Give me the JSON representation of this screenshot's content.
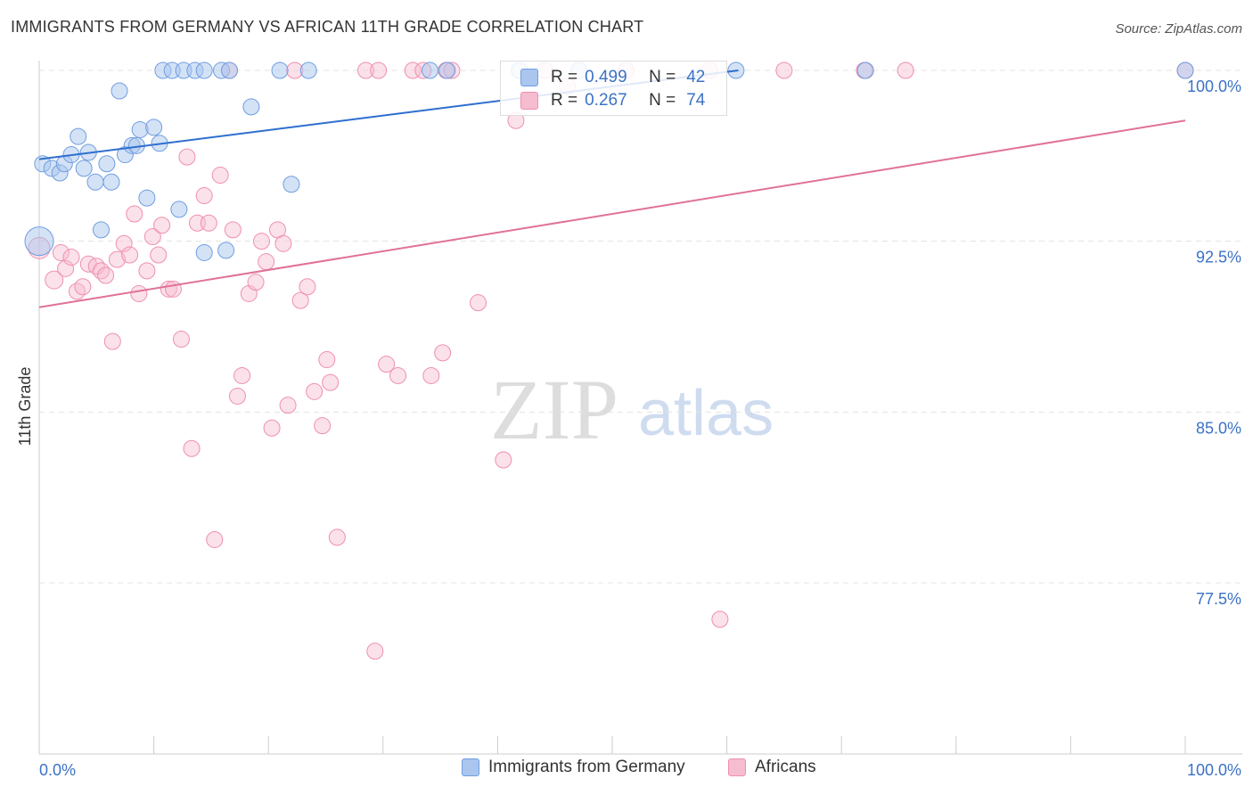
{
  "title": "IMMIGRANTS FROM GERMANY VS AFRICAN 11TH GRADE CORRELATION CHART",
  "source": "Source: ZipAtlas.com",
  "watermark": {
    "zip": "ZIP",
    "atlas": "atlas"
  },
  "stats": {
    "r_label": "R =",
    "n_label": "N =",
    "rows": [
      {
        "r": "0.499",
        "n": "42"
      },
      {
        "r": "0.267",
        "n": "74"
      }
    ]
  },
  "chart_data": {
    "type": "scatter",
    "title": "IMMIGRANTS FROM GERMANY VS AFRICAN 11TH GRADE CORRELATION CHART",
    "xlabel": "",
    "ylabel": "11th Grade",
    "xlim": [
      0,
      100
    ],
    "ylim": [
      70.0,
      101.0
    ],
    "x_tick_labels": [
      "0.0%",
      "100.0%"
    ],
    "y_ticks": [
      77.5,
      85.0,
      92.5,
      100.0
    ],
    "y_tick_labels": [
      "77.5%",
      "85.0%",
      "92.5%",
      "100.0%"
    ],
    "legend_position": "bottom",
    "colors": {
      "germany_fill": "#aac6ee",
      "germany_stroke": "#6f9ee0",
      "germany_line": "#2e6fcf",
      "africa_fill": "#f6bcd0",
      "africa_stroke": "#ef8fb0",
      "africa_line": "#e0719a",
      "axis_label": "#3b72c6"
    },
    "series": [
      {
        "name": "Immigrants from Germany",
        "trend": {
          "x": [
            0,
            61
          ],
          "y": [
            96.1,
            100.0
          ]
        },
        "points": [
          [
            0,
            92.5,
            16
          ],
          [
            0.3,
            95.9,
            9
          ],
          [
            1.1,
            95.7,
            9
          ],
          [
            1.8,
            95.5,
            9
          ],
          [
            2.2,
            95.9,
            9
          ],
          [
            2.8,
            96.3,
            9
          ],
          [
            3.4,
            97.1,
            9
          ],
          [
            3.9,
            95.7,
            9
          ],
          [
            4.3,
            96.4,
            9
          ],
          [
            4.9,
            95.1,
            9
          ],
          [
            5.4,
            93.0,
            9
          ],
          [
            5.9,
            95.9,
            9
          ],
          [
            6.3,
            95.1,
            9
          ],
          [
            7.0,
            99.1,
            9
          ],
          [
            7.5,
            96.3,
            9
          ],
          [
            8.1,
            96.7,
            9
          ],
          [
            8.5,
            96.7,
            9
          ],
          [
            8.8,
            97.4,
            9
          ],
          [
            9.4,
            94.4,
            9
          ],
          [
            10.0,
            97.5,
            9
          ],
          [
            10.5,
            96.8,
            9
          ],
          [
            10.8,
            100.0,
            9
          ],
          [
            11.6,
            100.0,
            9
          ],
          [
            12.2,
            93.9,
            9
          ],
          [
            12.6,
            100.0,
            9
          ],
          [
            13.6,
            100.0,
            9
          ],
          [
            14.4,
            100.0,
            9
          ],
          [
            14.4,
            92.0,
            9
          ],
          [
            15.9,
            100.0,
            9
          ],
          [
            16.6,
            100.0,
            9
          ],
          [
            16.3,
            92.1,
            9
          ],
          [
            18.5,
            98.4,
            9
          ],
          [
            21.0,
            100.0,
            9
          ],
          [
            22.0,
            95.0,
            9
          ],
          [
            23.5,
            100.0,
            9
          ],
          [
            34.1,
            100.0,
            9
          ],
          [
            35.6,
            100.0,
            9
          ],
          [
            41.9,
            100.0,
            9
          ],
          [
            47.1,
            100.0,
            9
          ],
          [
            60.8,
            100.0,
            9
          ],
          [
            72.1,
            100.0,
            9
          ],
          [
            100.0,
            100.0,
            9
          ]
        ]
      },
      {
        "name": "Africans",
        "trend": {
          "x": [
            0,
            100
          ],
          "y": [
            89.6,
            97.8
          ]
        },
        "points": [
          [
            0,
            92.2,
            12
          ],
          [
            1.3,
            90.8,
            10
          ],
          [
            1.9,
            92.0,
            9
          ],
          [
            2.3,
            91.3,
            9
          ],
          [
            2.8,
            91.8,
            9
          ],
          [
            3.3,
            90.3,
            9
          ],
          [
            3.8,
            90.5,
            9
          ],
          [
            4.3,
            91.5,
            9
          ],
          [
            5.0,
            91.4,
            9
          ],
          [
            5.4,
            91.2,
            9
          ],
          [
            5.8,
            91.0,
            9
          ],
          [
            6.4,
            88.1,
            9
          ],
          [
            6.8,
            91.7,
            9
          ],
          [
            7.4,
            92.4,
            9
          ],
          [
            7.9,
            91.9,
            9
          ],
          [
            8.3,
            93.7,
            9
          ],
          [
            8.7,
            90.2,
            9
          ],
          [
            9.4,
            91.2,
            9
          ],
          [
            9.9,
            92.7,
            9
          ],
          [
            10.4,
            91.9,
            9
          ],
          [
            10.7,
            93.2,
            9
          ],
          [
            11.3,
            90.4,
            9
          ],
          [
            11.7,
            90.4,
            9
          ],
          [
            12.4,
            88.2,
            9
          ],
          [
            12.9,
            96.2,
            9
          ],
          [
            13.3,
            83.4,
            9
          ],
          [
            13.8,
            93.3,
            9
          ],
          [
            14.4,
            94.5,
            9
          ],
          [
            14.8,
            93.3,
            9
          ],
          [
            15.3,
            79.4,
            9
          ],
          [
            15.8,
            95.4,
            9
          ],
          [
            16.6,
            100.0,
            9
          ],
          [
            16.9,
            93.0,
            9
          ],
          [
            17.3,
            85.7,
            9
          ],
          [
            17.7,
            86.6,
            9
          ],
          [
            18.3,
            90.2,
            9
          ],
          [
            18.9,
            90.7,
            9
          ],
          [
            19.4,
            92.5,
            9
          ],
          [
            19.8,
            91.6,
            9
          ],
          [
            20.3,
            84.3,
            9
          ],
          [
            20.8,
            93.0,
            9
          ],
          [
            21.3,
            92.4,
            9
          ],
          [
            21.7,
            85.3,
            9
          ],
          [
            22.3,
            100.0,
            9
          ],
          [
            22.8,
            89.9,
            9
          ],
          [
            23.4,
            90.5,
            9
          ],
          [
            24.0,
            85.9,
            9
          ],
          [
            24.7,
            84.4,
            9
          ],
          [
            25.1,
            87.3,
            9
          ],
          [
            25.4,
            86.3,
            9
          ],
          [
            26.0,
            79.5,
            9
          ],
          [
            28.5,
            100.0,
            9
          ],
          [
            29.3,
            74.5,
            9
          ],
          [
            29.6,
            100.0,
            9
          ],
          [
            30.3,
            87.1,
            9
          ],
          [
            31.3,
            86.6,
            9
          ],
          [
            32.6,
            100.0,
            9
          ],
          [
            33.5,
            100.0,
            9
          ],
          [
            34.2,
            86.6,
            9
          ],
          [
            35.2,
            87.6,
            9
          ],
          [
            35.5,
            100.0,
            9
          ],
          [
            36.0,
            100.0,
            9
          ],
          [
            38.3,
            89.8,
            9
          ],
          [
            40.5,
            82.9,
            9
          ],
          [
            41.6,
            97.8,
            9
          ],
          [
            46.1,
            99.3,
            9
          ],
          [
            51.2,
            100.0,
            9
          ],
          [
            58.5,
            100.0,
            9
          ],
          [
            59.4,
            75.9,
            9
          ],
          [
            65.0,
            100.0,
            9
          ],
          [
            72.0,
            100.0,
            9
          ],
          [
            75.6,
            100.0,
            9
          ],
          [
            100.0,
            100.0,
            9
          ],
          [
            44.1,
            100.0,
            9
          ]
        ]
      }
    ]
  }
}
